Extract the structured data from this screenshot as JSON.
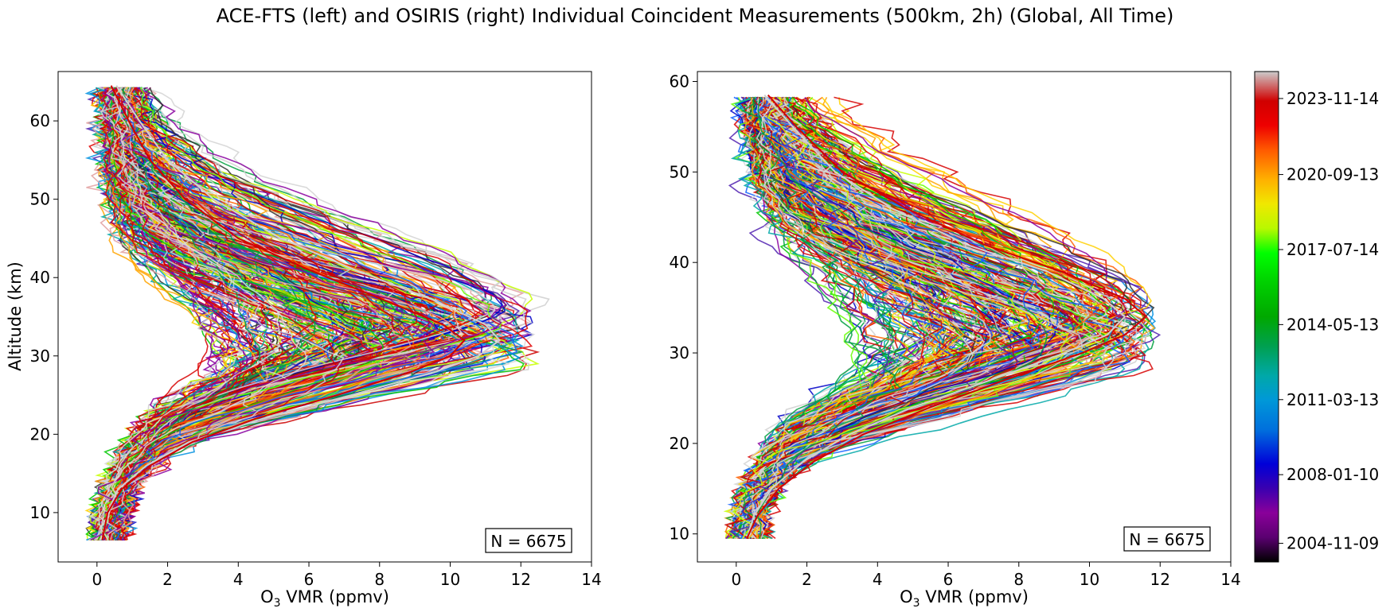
{
  "figure": {
    "title": "ACE-FTS (left) and OSIRIS (right) Individual Coincident Measurements (500km, 2h) (Global, All Time)"
  },
  "chart_data": [
    {
      "type": "line",
      "panel": "left",
      "xlabel_prefix": "O",
      "xlabel_sub": "3",
      "xlabel_suffix": " VMR (ppmv)",
      "ylabel": "Altitude (km)",
      "xlim": [
        -1.1,
        14
      ],
      "ylim": [
        3.7,
        66.3
      ],
      "xticks": [
        0,
        2,
        4,
        6,
        8,
        10,
        12,
        14
      ],
      "yticks": [
        10,
        20,
        30,
        40,
        50,
        60
      ],
      "annotation": "N = 6675",
      "annotation_placement": "bottom-right",
      "profile_count": 6675,
      "altitude_range": [
        6.5,
        64.5
      ],
      "peak_altitude_range": [
        28,
        36
      ],
      "peak_vmr_range": [
        3,
        12.5
      ],
      "colormap": "nipy_spectral",
      "series": [
        {
          "x": [
            0.15,
            0.3,
            0.6,
            1.4,
            2.6,
            4.7,
            7.2,
            9.6,
            10.8,
            11.4,
            11.0,
            9.6,
            7.3,
            5.2,
            3.3,
            2.0,
            1.2,
            0.55
          ],
          "y": [
            6.5,
            10,
            13,
            16,
            19,
            22,
            25,
            28,
            30,
            32,
            34,
            37,
            41,
            45,
            50,
            55,
            60,
            64.5
          ]
        },
        {
          "x": [
            0.15,
            0.3,
            0.7,
            1.5,
            2.7,
            4.5,
            6.8,
            8.9,
            10.0,
            10.4,
            9.8,
            8.2,
            6.0,
            4.0,
            2.5,
            1.5,
            0.9,
            0.4
          ],
          "y": [
            6.5,
            10,
            13,
            16,
            19,
            22,
            25,
            28,
            30,
            32,
            34,
            37,
            41,
            45,
            50,
            55,
            60,
            64.5
          ]
        }
      ]
    },
    {
      "type": "line",
      "panel": "right",
      "xlabel_prefix": "O",
      "xlabel_sub": "3",
      "xlabel_suffix": " VMR (ppmv)",
      "ylabel": "",
      "xlim": [
        -1.1,
        14
      ],
      "ylim": [
        6.9,
        61.1
      ],
      "xticks": [
        0,
        2,
        4,
        6,
        8,
        10,
        12,
        14
      ],
      "yticks": [
        10,
        20,
        30,
        40,
        50,
        60
      ],
      "annotation": "N = 6675",
      "annotation_placement": "bottom-right",
      "profile_count": 6675,
      "altitude_range": [
        9.5,
        58.5
      ],
      "peak_altitude_range": [
        28,
        36
      ],
      "peak_vmr_range": [
        3,
        11.8
      ],
      "colormap": "nipy_spectral",
      "series": [
        {
          "x": [
            0.3,
            0.5,
            1.0,
            1.9,
            3.2,
            5.0,
            7.2,
            9.3,
            10.5,
            11.0,
            10.4,
            8.8,
            6.5,
            4.4,
            2.8,
            1.6,
            0.8
          ],
          "y": [
            9.5,
            12,
            15,
            18,
            21,
            24,
            27,
            30,
            32,
            34,
            36,
            39,
            42,
            46,
            50,
            55,
            58.5
          ]
        },
        {
          "x": [
            0.3,
            0.6,
            1.2,
            2.2,
            3.6,
            5.5,
            7.6,
            9.8,
            11.0,
            11.6,
            11.0,
            9.2,
            7.0,
            4.8,
            3.0,
            1.7,
            0.9
          ],
          "y": [
            9.5,
            12,
            15,
            18,
            21,
            24,
            27,
            30,
            32,
            34,
            36,
            39,
            42,
            46,
            50,
            55,
            58.5
          ]
        }
      ]
    }
  ],
  "colorbar": {
    "colormap": "nipy_spectral",
    "tick_labels": [
      "2023-11-14",
      "2020-09-13",
      "2017-07-14",
      "2014-05-13",
      "2011-03-13",
      "2008-01-10",
      "2004-11-09"
    ],
    "tick_fractions": [
      0.945,
      0.79,
      0.637,
      0.484,
      0.331,
      0.178,
      0.038
    ]
  }
}
